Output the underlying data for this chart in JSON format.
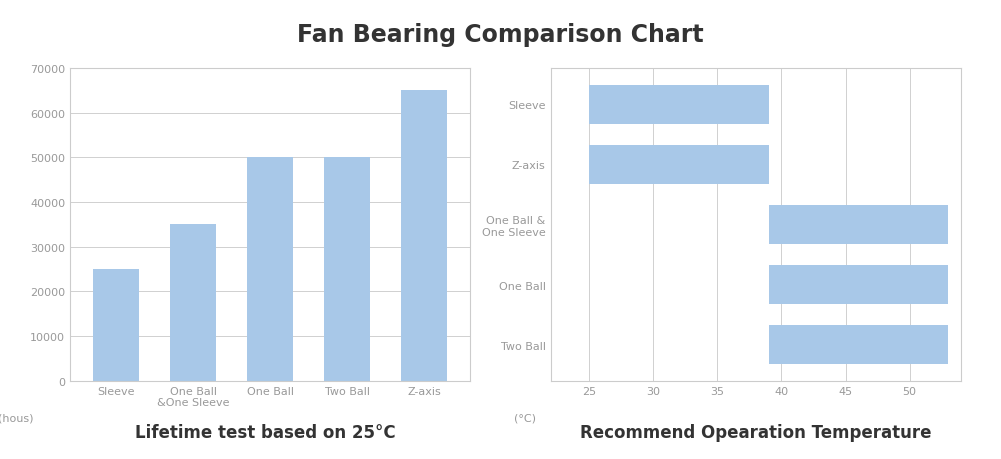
{
  "title": "Fan Bearing Comparison Chart",
  "title_fontsize": 17,
  "title_fontweight": "bold",
  "background_color": "#ffffff",
  "bar_chart": {
    "categories": [
      "Sleeve",
      "One Ball\n&One Sleeve",
      "One Ball",
      "Two Ball",
      "Z-axis"
    ],
    "values": [
      25000,
      35000,
      50000,
      50000,
      65000
    ],
    "bar_color": "#a8c8e8",
    "ylabel_unit": "(hous)",
    "yticks": [
      0,
      10000,
      20000,
      30000,
      40000,
      50000,
      60000,
      70000
    ],
    "ylim": [
      0,
      70000
    ],
    "subtitle": "Lifetime test based on 25°C",
    "subtitle_fontsize": 12,
    "subtitle_fontweight": "bold"
  },
  "h_bar_chart": {
    "categories": [
      "Two Ball",
      "One Ball",
      "One Ball &\nOne Sleeve",
      "Z-axis",
      "Sleeve"
    ],
    "bar_starts": [
      39,
      39,
      39,
      25,
      25
    ],
    "bar_widths": [
      14,
      14,
      14,
      14,
      14
    ],
    "bar_color": "#a8c8e8",
    "xlabel_unit": "(°C)",
    "xticks": [
      25,
      30,
      35,
      40,
      45,
      50
    ],
    "xlim": [
      22,
      54
    ],
    "subtitle": "Recommend Opearation Temperature",
    "subtitle_fontsize": 12,
    "subtitle_fontweight": "bold"
  },
  "grid_color": "#d0d0d0",
  "tick_label_color": "#999999",
  "tick_fontsize": 8,
  "box_edge_color": "#cccccc"
}
